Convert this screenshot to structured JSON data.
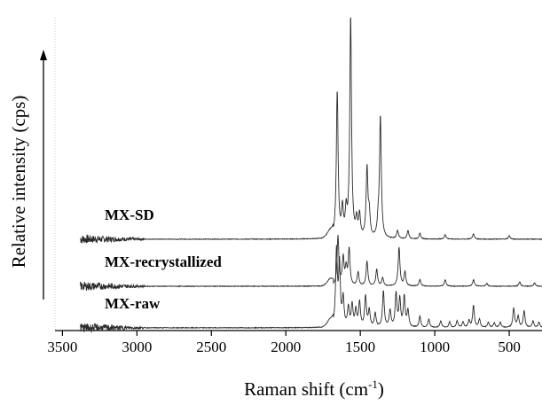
{
  "chart_data": {
    "type": "line",
    "xlabel": "Raman shift (cm",
    "xlabel_sup": "-1",
    "xlabel_close": ")",
    "ylabel": "Relative intensity (cps)",
    "x_reversed": true,
    "xlim": [
      3550,
      280
    ],
    "ylim": [
      -0.05,
      5.6
    ],
    "y_ticks_shown": false,
    "x_ticks": [
      3500,
      3000,
      2500,
      2000,
      1500,
      1000,
      500
    ],
    "x_tick_labels": [
      "3500",
      "3000",
      "2500",
      "2000",
      "1500",
      "1000",
      "500"
    ],
    "grid": false,
    "legend": "none",
    "line_color": "#2b2b2b",
    "series": [
      {
        "name": "MX-SD",
        "baseline": 1.6,
        "noise_region": [
          3380,
          2950
        ],
        "peaks": [
          {
            "x": 1655,
            "h": 2.65
          },
          {
            "x": 1620,
            "h": 0.5
          },
          {
            "x": 1595,
            "h": 0.45
          },
          {
            "x": 1565,
            "h": 4.0
          },
          {
            "x": 1525,
            "h": 0.3
          },
          {
            "x": 1505,
            "h": 0.4
          },
          {
            "x": 1455,
            "h": 1.25
          },
          {
            "x": 1440,
            "h": 0.4
          },
          {
            "x": 1380,
            "h": 0.25
          },
          {
            "x": 1365,
            "h": 2.2
          },
          {
            "x": 1250,
            "h": 0.15
          },
          {
            "x": 1180,
            "h": 0.15
          },
          {
            "x": 1100,
            "h": 0.1
          },
          {
            "x": 930,
            "h": 0.08
          },
          {
            "x": 740,
            "h": 0.1
          },
          {
            "x": 500,
            "h": 0.06
          }
        ]
      },
      {
        "name": "MX-recrystallized",
        "baseline": 0.75,
        "noise_region": [
          3380,
          2950
        ],
        "peaks": [
          {
            "x": 1650,
            "h": 0.9
          },
          {
            "x": 1615,
            "h": 0.5
          },
          {
            "x": 1595,
            "h": 0.3
          },
          {
            "x": 1575,
            "h": 0.65
          },
          {
            "x": 1515,
            "h": 0.25
          },
          {
            "x": 1455,
            "h": 0.45
          },
          {
            "x": 1390,
            "h": 0.3
          },
          {
            "x": 1350,
            "h": 0.15
          },
          {
            "x": 1240,
            "h": 0.7
          },
          {
            "x": 1200,
            "h": 0.25
          },
          {
            "x": 1100,
            "h": 0.12
          },
          {
            "x": 930,
            "h": 0.12
          },
          {
            "x": 740,
            "h": 0.12
          },
          {
            "x": 650,
            "h": 0.05
          },
          {
            "x": 430,
            "h": 0.08
          },
          {
            "x": 330,
            "h": 0.06
          }
        ]
      },
      {
        "name": "MX-raw",
        "baseline": 0.0,
        "noise_region": [
          3380,
          2950
        ],
        "peaks": [
          {
            "x": 1660,
            "h": 1.35
          },
          {
            "x": 1640,
            "h": 1.1
          },
          {
            "x": 1615,
            "h": 0.5
          },
          {
            "x": 1580,
            "h": 0.35
          },
          {
            "x": 1555,
            "h": 0.4
          },
          {
            "x": 1530,
            "h": 0.3
          },
          {
            "x": 1505,
            "h": 0.45
          },
          {
            "x": 1465,
            "h": 0.55
          },
          {
            "x": 1440,
            "h": 0.3
          },
          {
            "x": 1400,
            "h": 0.25
          },
          {
            "x": 1345,
            "h": 0.65
          },
          {
            "x": 1300,
            "h": 0.3
          },
          {
            "x": 1260,
            "h": 0.6
          },
          {
            "x": 1235,
            "h": 0.5
          },
          {
            "x": 1205,
            "h": 0.55
          },
          {
            "x": 1180,
            "h": 0.3
          },
          {
            "x": 1100,
            "h": 0.2
          },
          {
            "x": 1040,
            "h": 0.15
          },
          {
            "x": 960,
            "h": 0.12
          },
          {
            "x": 900,
            "h": 0.1
          },
          {
            "x": 850,
            "h": 0.12
          },
          {
            "x": 810,
            "h": 0.1
          },
          {
            "x": 770,
            "h": 0.12
          },
          {
            "x": 740,
            "h": 0.4
          },
          {
            "x": 700,
            "h": 0.15
          },
          {
            "x": 640,
            "h": 0.1
          },
          {
            "x": 600,
            "h": 0.08
          },
          {
            "x": 560,
            "h": 0.1
          },
          {
            "x": 470,
            "h": 0.35
          },
          {
            "x": 440,
            "h": 0.2
          },
          {
            "x": 400,
            "h": 0.3
          },
          {
            "x": 340,
            "h": 0.12
          },
          {
            "x": 300,
            "h": 0.1
          }
        ]
      }
    ]
  }
}
